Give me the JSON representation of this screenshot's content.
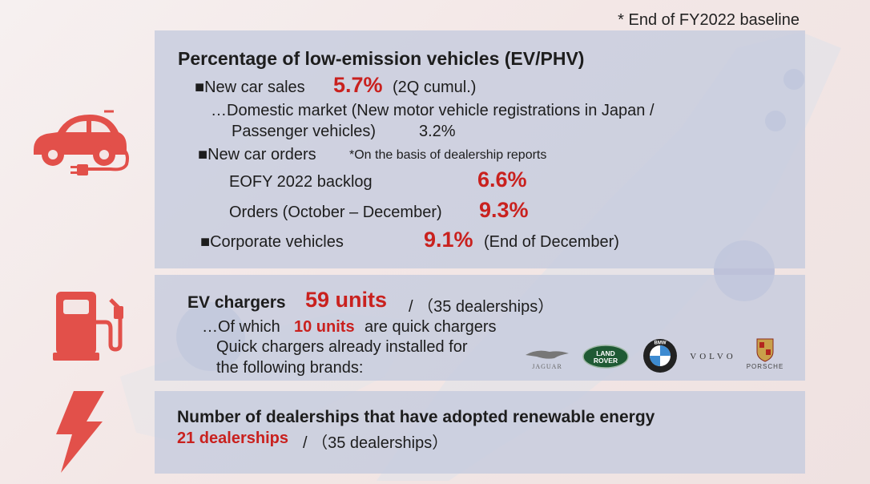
{
  "baseline_note": "* End of FY2022 baseline",
  "low_emission": {
    "title": "Percentage of low-emission vehicles (EV/PHV)",
    "new_car_sales_label": "■New car sales",
    "new_car_sales_value": "5.7%",
    "new_car_sales_suffix": "(2Q cumul.)",
    "domestic_line1": "…Domestic market (New motor vehicle registrations in Japan /",
    "domestic_line2": "Passenger vehicles)",
    "domestic_value": "3.2%",
    "new_car_orders_label": "■New car orders",
    "new_car_orders_note": "*On the basis of dealership reports",
    "backlog_label": "EOFY 2022 backlog",
    "backlog_value": "6.6%",
    "orders_label": "Orders (October – December)",
    "orders_value": "9.3%",
    "corporate_label": "■Corporate vehicles",
    "corporate_value": "9.1%",
    "corporate_suffix": "(End of December)"
  },
  "ev_chargers": {
    "title": "EV chargers",
    "value": "59 units",
    "suffix": "/ （35 dealerships）",
    "line1_prefix": "…Of which",
    "line1_value": "10 units",
    "line1_suffix": "are quick chargers",
    "line2": "Quick chargers already installed for",
    "line3": "the following brands:",
    "brands": [
      "JAGUAR",
      "LAND ROVER",
      "BMW",
      "VOLVO",
      "PORSCHE"
    ]
  },
  "renewable": {
    "title": "Number of dealerships that have adopted renewable energy",
    "value": "21 dealerships",
    "suffix": "/ （35 dealerships）"
  },
  "colors": {
    "accent_red": "#c9211e",
    "icon_red": "#e2504a",
    "panel": "#c4cade"
  },
  "icons": [
    "ev-car-icon",
    "fuel-pump-icon",
    "lightning-bolt-icon"
  ]
}
